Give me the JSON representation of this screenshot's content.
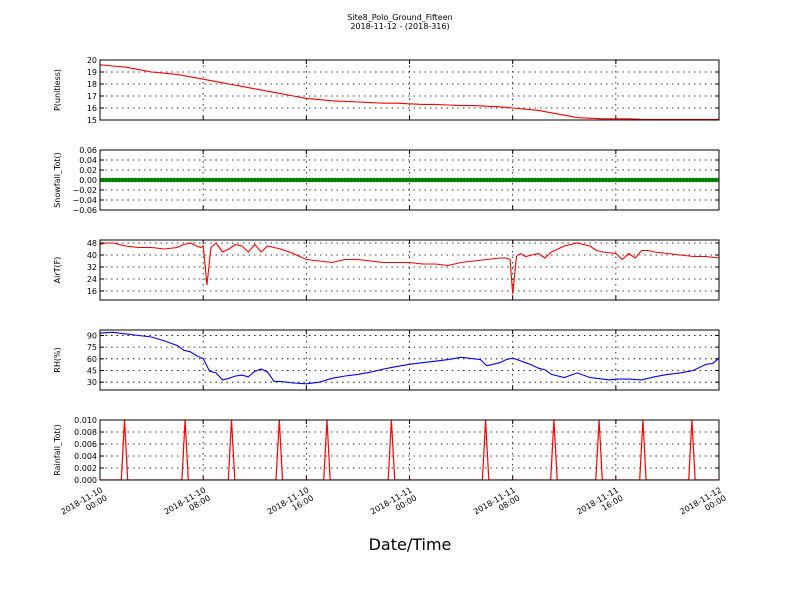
{
  "title": "Site8_Polo_Ground_Fifteen",
  "subtitle": "2018-11-12 - (2018-316)",
  "xlabel": "Date/Time",
  "x_ticks": [
    {
      "line1": "2018-11-10",
      "line2": "00:00",
      "h": 0
    },
    {
      "line1": "2018-11-10",
      "line2": "08:00",
      "h": 8
    },
    {
      "line1": "2018-11-10",
      "line2": "16:00",
      "h": 16
    },
    {
      "line1": "2018-11-11",
      "line2": "00:00",
      "h": 24
    },
    {
      "line1": "2018-11-11",
      "line2": "08:00",
      "h": 32
    },
    {
      "line1": "2018-11-11",
      "line2": "16:00",
      "h": 40
    },
    {
      "line1": "2018-11-12",
      "line2": "00:00",
      "h": 48
    }
  ],
  "chart_data": [
    {
      "type": "line",
      "ylabel": "P(unitless)",
      "ylim": [
        15,
        20
      ],
      "yticks": [
        "15",
        "16",
        "17",
        "18",
        "19",
        "20"
      ],
      "ytick_values": [
        15,
        16,
        17,
        18,
        19,
        20
      ],
      "color": "#ff0000",
      "grid": true,
      "series": [
        {
          "x": [
            0,
            1,
            2,
            3,
            4,
            5,
            6,
            7,
            8,
            9,
            10,
            11,
            12,
            13,
            14,
            15,
            16,
            17,
            18,
            19,
            20,
            21,
            22,
            23,
            24,
            25,
            26,
            27,
            28,
            29,
            30,
            31,
            32,
            33,
            34,
            35,
            36,
            37,
            38,
            39,
            40,
            41,
            42,
            43,
            44,
            45,
            46,
            47,
            48
          ],
          "values": [
            19.6,
            19.5,
            19.4,
            19.2,
            19.0,
            18.9,
            18.8,
            18.6,
            18.4,
            18.2,
            18.0,
            17.8,
            17.6,
            17.4,
            17.2,
            17.0,
            16.8,
            16.7,
            16.6,
            16.55,
            16.5,
            16.45,
            16.4,
            16.4,
            16.35,
            16.3,
            16.3,
            16.25,
            16.2,
            16.2,
            16.15,
            16.1,
            16.0,
            15.9,
            15.8,
            15.6,
            15.4,
            15.2,
            15.15,
            15.1,
            15.1,
            15.1,
            15.05,
            15.05,
            15.05,
            15.05,
            15.05,
            15.05,
            15.05
          ]
        }
      ]
    },
    {
      "type": "scatter",
      "ylabel": "Snowfall_Tot()",
      "ylim": [
        -0.06,
        0.06
      ],
      "yticks": [
        "−0.06",
        "−0.04",
        "−0.02",
        "0.00",
        "0.02",
        "0.04",
        "0.06"
      ],
      "ytick_values": [
        -0.06,
        -0.04,
        -0.02,
        0,
        0.02,
        0.04,
        0.06
      ],
      "color": "#008000",
      "grid": true,
      "series": [
        {
          "x_start": 0,
          "x_end": 48,
          "x_step": 0.25,
          "value": 0.0
        }
      ]
    },
    {
      "type": "line",
      "ylabel": "AirT(F)",
      "ylim": [
        10,
        50
      ],
      "yticks": [
        "16",
        "24",
        "32",
        "40",
        "48"
      ],
      "ytick_values": [
        16,
        24,
        32,
        40,
        48
      ],
      "color": "#ff0000",
      "grid": true,
      "series": [
        {
          "x": [
            0,
            0.5,
            1,
            1.5,
            2,
            3,
            4,
            5,
            6,
            6.5,
            7,
            7.5,
            7.8,
            8,
            8.3,
            8.6,
            9,
            9.5,
            10,
            10.5,
            11,
            11.5,
            12,
            12.5,
            13,
            13.5,
            14,
            15,
            16,
            17,
            18,
            19,
            20,
            21,
            22,
            23,
            24,
            25,
            26,
            27,
            28,
            29,
            30,
            31,
            31.5,
            31.8,
            32,
            32.3,
            32.6,
            33,
            33.5,
            34,
            34.5,
            35,
            36,
            36.5,
            37,
            37.5,
            38,
            38.5,
            39,
            40,
            40.5,
            41,
            41.5,
            42,
            42.5,
            43,
            44,
            45,
            46,
            47,
            48
          ],
          "values": [
            47,
            48,
            48,
            47,
            46,
            45,
            45,
            44,
            45,
            47,
            48,
            46,
            45,
            46,
            20,
            45,
            48,
            42,
            44,
            47,
            46,
            42,
            47,
            42,
            46,
            45,
            44,
            41,
            37,
            36,
            35,
            37,
            37,
            36,
            35,
            35,
            35,
            34,
            34,
            33,
            35,
            36,
            37,
            38,
            38,
            37,
            14,
            39,
            41,
            39,
            40,
            41,
            38,
            42,
            46,
            47,
            48,
            47,
            46,
            43,
            42,
            41,
            37,
            41,
            38,
            43,
            43,
            42,
            41,
            40,
            39,
            39,
            38
          ]
        }
      ]
    },
    {
      "type": "line",
      "ylabel": "RH(%)",
      "ylim": [
        20,
        97
      ],
      "yticks": [
        "30",
        "45",
        "60",
        "75",
        "90"
      ],
      "ytick_values": [
        30,
        45,
        60,
        75,
        90
      ],
      "color": "#0000ff",
      "grid": true,
      "series": [
        {
          "x": [
            0,
            1,
            2,
            3,
            4,
            5,
            6,
            6.5,
            7,
            7.5,
            8,
            8.5,
            9,
            9.5,
            10,
            10.5,
            11,
            11.5,
            12,
            12.5,
            13,
            13.5,
            14,
            15,
            16,
            17,
            18,
            19,
            20,
            21,
            22,
            23,
            24,
            25,
            26,
            27,
            28,
            28.5,
            29,
            29.5,
            30,
            31,
            31.5,
            32,
            32.5,
            33,
            33.5,
            34,
            34.5,
            35,
            36,
            37,
            38,
            38.5,
            39,
            39.5,
            40,
            41,
            42,
            43,
            44,
            45,
            46,
            47,
            47.5,
            48
          ],
          "values": [
            93,
            94,
            92,
            90,
            88,
            83,
            77,
            71,
            69,
            64,
            60,
            44,
            42,
            33,
            35,
            38,
            39,
            37,
            44,
            47,
            43,
            31,
            31,
            29,
            28,
            30,
            35,
            38,
            40,
            43,
            47,
            50,
            53,
            55,
            57,
            59,
            62,
            61,
            60,
            59,
            51,
            55,
            59,
            61,
            58,
            55,
            52,
            48,
            46,
            40,
            36,
            42,
            36,
            35,
            34,
            33,
            34,
            34,
            33,
            37,
            40,
            42,
            45,
            53,
            54,
            61
          ]
        }
      ]
    },
    {
      "type": "line",
      "ylabel": "Rainfall_Tot()",
      "ylim": [
        0,
        0.01
      ],
      "yticks": [
        "0.000",
        "0.002",
        "0.004",
        "0.006",
        "0.008",
        "0.010"
      ],
      "ytick_values": [
        0,
        0.002,
        0.004,
        0.006,
        0.008,
        0.01
      ],
      "color": "#ff0000",
      "grid": true,
      "series": [
        {
          "spike_x": [
            1.9,
            6.6,
            10.2,
            13.9,
            17.6,
            22.6,
            29.9,
            35.2,
            38.7,
            42.1,
            45.9
          ],
          "spike_value": 0.01,
          "spike_halfwidth": 0.25
        }
      ]
    }
  ]
}
